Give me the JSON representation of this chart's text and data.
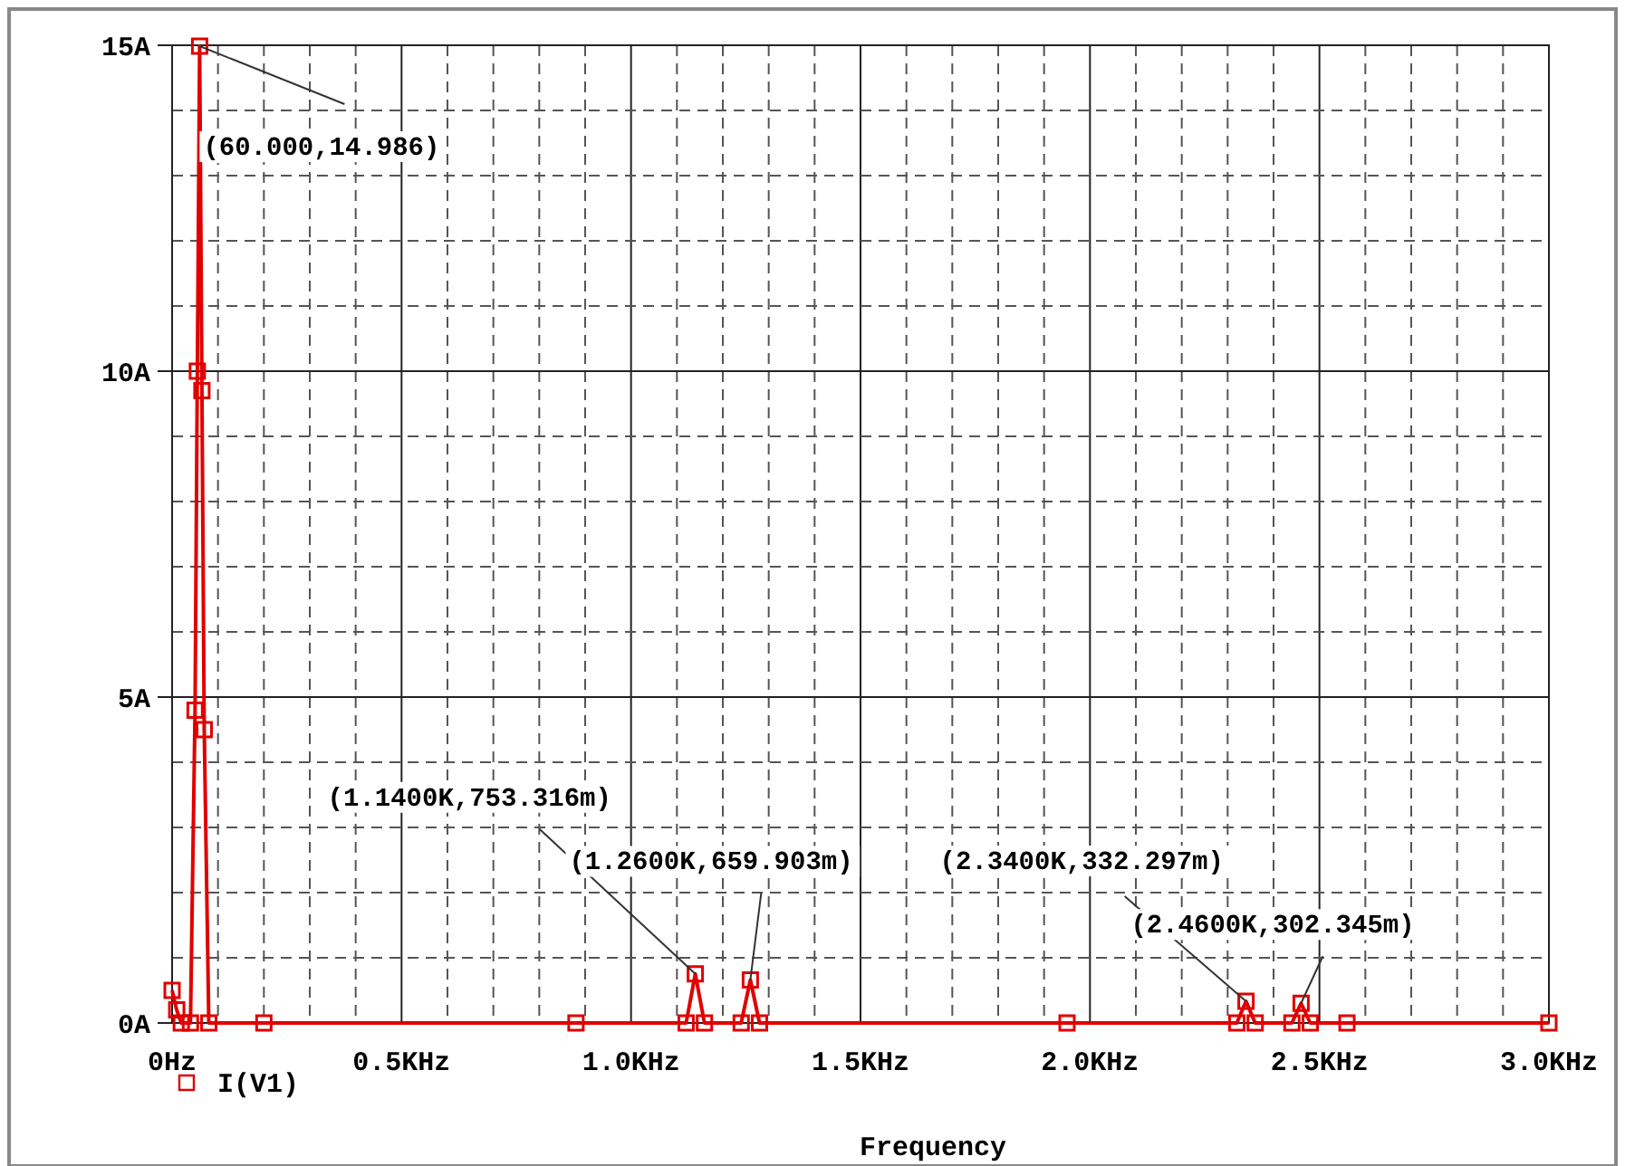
{
  "chart_data": {
    "type": "line",
    "xlabel": "Frequency",
    "x": [
      0,
      0.01,
      0.02,
      0.04,
      0.05,
      0.055,
      0.06,
      0.065,
      0.07,
      0.08,
      0.2,
      0.88,
      1.12,
      1.14,
      1.16,
      1.24,
      1.26,
      1.28,
      1.95,
      2.32,
      2.34,
      2.36,
      2.44,
      2.46,
      2.48,
      2.56,
      3
    ],
    "series": [
      {
        "name": "I(V1)",
        "color": "#e00000",
        "values": [
          0.5,
          0.2,
          0,
          0,
          4.8,
          10,
          14.986,
          9.7,
          4.5,
          0,
          0,
          0,
          0,
          0.753,
          0,
          0,
          0.66,
          0,
          0,
          0,
          0.332,
          0,
          0,
          0.302,
          0,
          0,
          0
        ]
      }
    ],
    "xlim": [
      0,
      3
    ],
    "xticks": [
      {
        "value": 0,
        "label": "0Hz"
      },
      {
        "value": 0.1,
        "label": null
      },
      {
        "value": 0.2,
        "label": null
      },
      {
        "value": 0.3,
        "label": null
      },
      {
        "value": 0.4,
        "label": null
      },
      {
        "value": 0.5,
        "label": "0.5KHz"
      },
      {
        "value": 0.6,
        "label": null
      },
      {
        "value": 0.7,
        "label": null
      },
      {
        "value": 0.8,
        "label": null
      },
      {
        "value": 0.9,
        "label": null
      },
      {
        "value": 1,
        "label": "1.0KHz"
      },
      {
        "value": 1.1,
        "label": null
      },
      {
        "value": 1.2,
        "label": null
      },
      {
        "value": 1.3,
        "label": null
      },
      {
        "value": 1.4,
        "label": null
      },
      {
        "value": 1.5,
        "label": "1.5KHz"
      },
      {
        "value": 1.6,
        "label": null
      },
      {
        "value": 1.7,
        "label": null
      },
      {
        "value": 1.8,
        "label": null
      },
      {
        "value": 1.9,
        "label": null
      },
      {
        "value": 2,
        "label": "2.0KHz"
      },
      {
        "value": 2.1,
        "label": null
      },
      {
        "value": 2.2,
        "label": null
      },
      {
        "value": 2.3,
        "label": null
      },
      {
        "value": 2.4,
        "label": null
      },
      {
        "value": 2.5,
        "label": "2.5KHz"
      },
      {
        "value": 2.6,
        "label": null
      },
      {
        "value": 2.7,
        "label": null
      },
      {
        "value": 2.8,
        "label": null
      },
      {
        "value": 2.9,
        "label": null
      },
      {
        "value": 3,
        "label": "3.0KHz"
      }
    ],
    "ylim": [
      0,
      15
    ],
    "yticks": [
      {
        "value": 0,
        "label": "0A"
      },
      {
        "value": 1,
        "label": null
      },
      {
        "value": 2,
        "label": null
      },
      {
        "value": 3,
        "label": null
      },
      {
        "value": 4,
        "label": null
      },
      {
        "value": 5,
        "label": "5A"
      },
      {
        "value": 6,
        "label": null
      },
      {
        "value": 7,
        "label": null
      },
      {
        "value": 8,
        "label": null
      },
      {
        "value": 9,
        "label": null
      },
      {
        "value": 10,
        "label": "10A"
      },
      {
        "value": 11,
        "label": null
      },
      {
        "value": 12,
        "label": null
      },
      {
        "value": 13,
        "label": null
      },
      {
        "value": 14,
        "label": null
      },
      {
        "value": 15,
        "label": "15A"
      }
    ],
    "grid": true,
    "marker": "square",
    "line_style": "solid",
    "legend": "bottom left",
    "annotations": [
      {
        "text": "(60.000,14.986)",
        "x": 0.06,
        "y": 14.986
      },
      {
        "text": "(1.1400K,753.316m)",
        "x": 1.14,
        "y": 0.753
      },
      {
        "text": "(1.2600K,659.903m)",
        "x": 1.26,
        "y": 0.66
      },
      {
        "text": "(2.3400K,332.297m)",
        "x": 2.34,
        "y": 0.332
      },
      {
        "text": "(2.4600K,302.345m)",
        "x": 2.46,
        "y": 0.302
      }
    ]
  }
}
